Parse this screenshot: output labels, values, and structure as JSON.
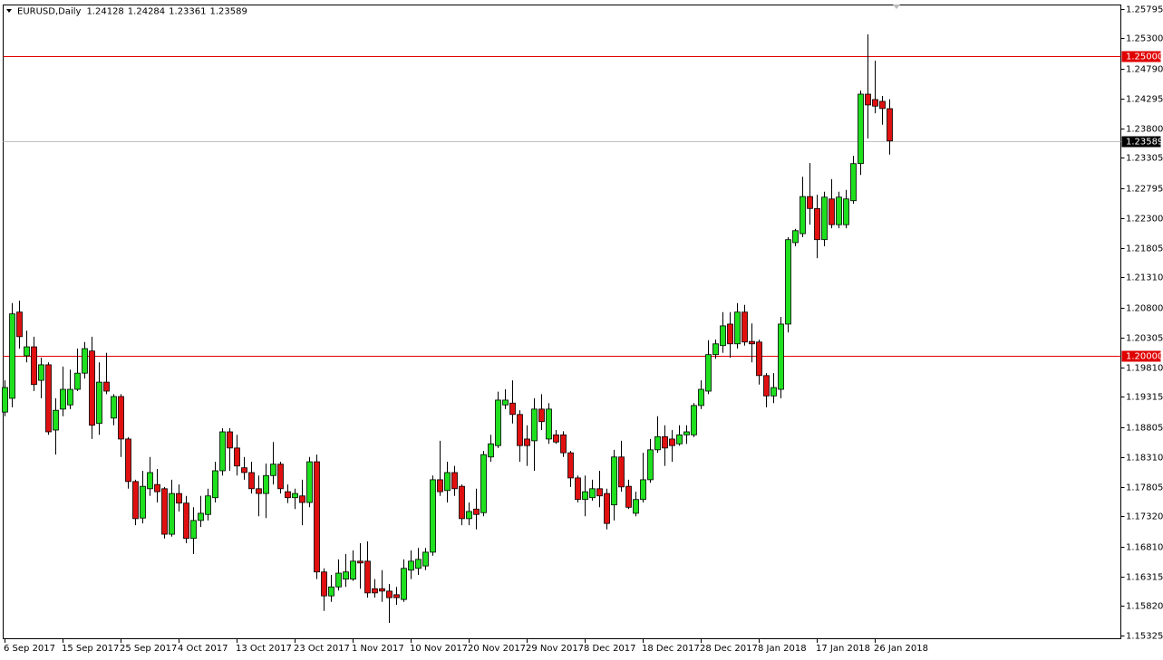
{
  "chart_data": {
    "type": "candlestick",
    "title": "EURUSD,Daily",
    "categories": [
      "6 Sep 2017",
      null,
      null,
      null,
      null,
      null,
      null,
      null,
      "15 Sep 2017",
      null,
      null,
      null,
      null,
      null,
      null,
      null,
      "25 Sep 2017",
      null,
      null,
      null,
      null,
      null,
      null,
      null,
      "4 Oct 2017",
      null,
      null,
      null,
      null,
      null,
      null,
      null,
      "13 Oct 2017",
      null,
      null,
      null,
      null,
      null,
      null,
      null,
      "23 Oct 2017",
      null,
      null,
      null,
      null,
      null,
      null,
      null,
      "1 Nov 2017",
      null,
      null,
      null,
      null,
      null,
      null,
      null,
      "10 Nov 2017",
      null,
      null,
      null,
      null,
      null,
      null,
      null,
      "20 Nov 2017",
      null,
      null,
      null,
      null,
      null,
      null,
      null,
      "29 Nov 2017",
      null,
      null,
      null,
      null,
      null,
      null,
      null,
      "8 Dec 2017",
      null,
      null,
      null,
      null,
      null,
      null,
      null,
      "18 Dec 2017",
      null,
      null,
      null,
      null,
      null,
      null,
      null,
      "28 Dec 2017",
      null,
      null,
      null,
      null,
      null,
      null,
      null,
      "8 Jan 2018",
      null,
      null,
      null,
      null,
      null,
      null,
      null,
      "17 Jan 2018",
      null,
      null,
      null,
      null,
      null,
      null,
      null,
      "26 Jan 2018",
      null,
      null
    ],
    "open": [
      1.1906,
      1.1929,
      1.2073,
      1.2,
      1.2015,
      1.1959,
      1.1985,
      1.1876,
      1.1911,
      1.1918,
      1.1944,
      1.1971,
      1.2008,
      1.1887,
      1.1956,
      1.1896,
      1.1932,
      1.1861,
      1.179,
      1.1729,
      1.1778,
      1.1785,
      1.1778,
      1.1702,
      1.177,
      1.1754,
      1.1695,
      1.1725,
      1.1735,
      1.1763,
      1.1808,
      1.1873,
      1.1846,
      1.1813,
      1.1805,
      1.1778,
      1.177,
      1.18,
      1.1819,
      1.1773,
      1.1763,
      1.1766,
      1.1755,
      1.1823,
      1.1639,
      1.1599,
      1.1614,
      1.1627,
      1.1627,
      1.1657,
      1.1657,
      1.1611,
      1.1611,
      1.1607,
      1.1601,
      1.1593,
      1.1642,
      1.1645,
      1.1649,
      1.1672,
      1.1793,
      1.1775,
      1.1805,
      1.1782,
      1.1728,
      1.1744,
      1.1738,
      1.1831,
      1.185,
      1.1918,
      1.1921,
      1.1902,
      1.1861,
      1.1858,
      1.1911,
      1.1861,
      1.1868,
      1.1868,
      1.1838,
      1.1796,
      1.176,
      1.1763,
      1.1778,
      1.177,
      1.1751,
      1.1831,
      1.1782,
      1.1737,
      1.176,
      1.1793,
      1.1843,
      1.1865,
      1.1861,
      1.1853,
      1.1868,
      1.1868,
      1.1917,
      1.1941,
      1.2002,
      1.2017,
      1.2053,
      1.202,
      1.2073,
      1.2024,
      1.2023,
      1.1967,
      1.1933,
      1.1944,
      1.2053,
      1.2189,
      1.2204,
      1.2266,
      1.2246,
      1.2194,
      1.2262,
      1.2219,
      1.2219,
      1.2259,
      1.2321,
      1.2437,
      1.2428,
      1.2425,
      1.24128
    ],
    "high": [
      1.1959,
      1.2088,
      1.2092,
      1.2042,
      1.2032,
      1.1997,
      1.1989,
      1.1929,
      1.1982,
      1.1977,
      1.2012,
      1.2023,
      1.2032,
      1.1989,
      1.2005,
      1.1936,
      1.1936,
      1.1864,
      1.1793,
      1.1808,
      1.1831,
      1.1811,
      1.1781,
      1.1793,
      1.1785,
      1.1766,
      1.1747,
      1.1766,
      1.1778,
      1.1823,
      1.1879,
      1.1879,
      1.1868,
      1.1831,
      1.1823,
      1.18,
      1.182,
      1.1856,
      1.1823,
      1.1785,
      1.1778,
      1.1793,
      1.1831,
      1.1835,
      1.1645,
      1.1634,
      1.166,
      1.1669,
      1.1675,
      1.1687,
      1.169,
      1.1627,
      1.1642,
      1.1619,
      1.1614,
      1.166,
      1.1675,
      1.1679,
      1.1679,
      1.18,
      1.1858,
      1.1823,
      1.1816,
      1.1785,
      1.1755,
      1.1778,
      1.1841,
      1.1868,
      1.194,
      1.1944,
      1.1959,
      1.1909,
      1.1884,
      1.1929,
      1.1936,
      1.1921,
      1.1876,
      1.1874,
      1.1841,
      1.18,
      1.18,
      1.1793,
      1.1808,
      1.1778,
      1.1843,
      1.1858,
      1.1793,
      1.1773,
      1.1838,
      1.1861,
      1.1899,
      1.1884,
      1.1876,
      1.1884,
      1.1884,
      1.1921,
      1.1959,
      1.2026,
      1.2027,
      1.2073,
      1.2073,
      1.2088,
      1.2085,
      1.2054,
      1.2027,
      1.1971,
      1.1971,
      1.2065,
      1.2198,
      1.2212,
      1.2299,
      1.2322,
      1.2269,
      1.2274,
      1.2295,
      1.2274,
      1.2277,
      1.2334,
      1.2443,
      1.2537,
      1.2493,
      1.2434,
      1.24284
    ],
    "low": [
      1.1899,
      1.1914,
      1.2012,
      1.1989,
      1.1941,
      1.1929,
      1.1868,
      1.1835,
      1.1899,
      1.1911,
      1.1941,
      1.1962,
      1.1861,
      1.1868,
      1.1936,
      1.1884,
      1.1831,
      1.1778,
      1.1717,
      1.172,
      1.1766,
      1.1755,
      1.1695,
      1.1698,
      1.174,
      1.1687,
      1.1669,
      1.1714,
      1.1725,
      1.1755,
      1.18,
      1.1808,
      1.18,
      1.1793,
      1.177,
      1.1732,
      1.1729,
      1.1785,
      1.177,
      1.1754,
      1.1744,
      1.1717,
      1.1747,
      1.1627,
      1.1574,
      1.1589,
      1.1608,
      1.1614,
      1.1624,
      1.1611,
      1.1596,
      1.1596,
      1.1589,
      1.1554,
      1.1584,
      1.1589,
      1.1627,
      1.1634,
      1.1642,
      1.1666,
      1.1766,
      1.1755,
      1.1766,
      1.1717,
      1.1717,
      1.171,
      1.1732,
      1.1823,
      1.1846,
      1.1911,
      1.1887,
      1.1823,
      1.1816,
      1.1808,
      1.1876,
      1.1853,
      1.1853,
      1.1831,
      1.1781,
      1.1755,
      1.1732,
      1.1758,
      1.1747,
      1.171,
      1.1725,
      1.1773,
      1.1744,
      1.1732,
      1.1755,
      1.1788,
      1.1838,
      1.1816,
      1.1823,
      1.185,
      1.1853,
      1.1864,
      1.1911,
      1.1936,
      1.1995,
      1.2005,
      1.1997,
      1.2012,
      1.2017,
      1.1989,
      1.1952,
      1.1914,
      1.1921,
      1.1929,
      1.2039,
      1.2183,
      1.2198,
      1.2219,
      1.2163,
      1.2183,
      1.2213,
      1.2213,
      1.2213,
      1.2254,
      1.2302,
      1.2363,
      1.2405,
      1.2386,
      1.23361
    ],
    "close": [
      1.1947,
      1.207,
      1.2032,
      1.2015,
      1.1952,
      1.1985,
      1.1873,
      1.1909,
      1.1944,
      1.1944,
      1.1971,
      1.2012,
      1.1884,
      1.1956,
      1.1941,
      1.1932,
      1.1861,
      1.179,
      1.1728,
      1.1782,
      1.1805,
      1.1773,
      1.1702,
      1.177,
      1.1754,
      1.1695,
      1.1725,
      1.1737,
      1.1766,
      1.1808,
      1.1873,
      1.1846,
      1.1816,
      1.1805,
      1.1778,
      1.177,
      1.18,
      1.1819,
      1.1778,
      1.1763,
      1.177,
      1.1755,
      1.1823,
      1.1639,
      1.1599,
      1.1614,
      1.1637,
      1.1639,
      1.1657,
      1.1654,
      1.1604,
      1.1604,
      1.1607,
      1.1596,
      1.1596,
      1.1645,
      1.1657,
      1.166,
      1.1672,
      1.1793,
      1.1773,
      1.1805,
      1.1778,
      1.1728,
      1.174,
      1.1735,
      1.1835,
      1.1853,
      1.1926,
      1.1926,
      1.1902,
      1.185,
      1.185,
      1.1911,
      1.189,
      1.1911,
      1.1856,
      1.1838,
      1.1796,
      1.176,
      1.1773,
      1.1778,
      1.1766,
      1.172,
      1.1831,
      1.1781,
      1.1747,
      1.176,
      1.1793,
      1.1843,
      1.1865,
      1.1846,
      1.185,
      1.1868,
      1.1873,
      1.1917,
      1.1944,
      1.2002,
      1.202,
      1.205,
      1.202,
      1.2073,
      1.2023,
      1.202,
      1.1967,
      1.1933,
      1.1947,
      1.2053,
      1.2194,
      1.2209,
      1.2266,
      1.2246,
      1.2194,
      1.2265,
      1.2219,
      1.2265,
      1.2262,
      1.2321,
      1.2437,
      1.2419,
      1.2417,
      1.2413,
      1.23589
    ],
    "up_color": "#1ee01e",
    "down_color": "#e01010",
    "levels": [
      {
        "value": 1.25,
        "label": "1.25000",
        "color": "#e00000"
      },
      {
        "value": 1.2,
        "label": "1.20000",
        "color": "#e00000"
      }
    ],
    "last_price_color": "#c0c0c0",
    "ylim": [
      1.15267,
      1.25867
    ],
    "yticks": [
      1.25795,
      {
        "value": 1.253,
        "label": "1.25300"
      },
      {
        "value": 1.2479,
        "label": "1.24790"
      },
      1.24295,
      {
        "value": 1.238,
        "label": "1.23800"
      },
      1.23305,
      1.22795,
      {
        "value": 1.223,
        "label": "1.22300"
      },
      1.21805,
      {
        "value": 1.2131,
        "label": "1.21310"
      },
      {
        "value": 1.208,
        "label": "1.20800"
      },
      1.20305,
      {
        "value": 1.1981,
        "label": "1.19810"
      },
      1.19315,
      1.18805,
      {
        "value": 1.1831,
        "label": "1.18310"
      },
      1.17805,
      {
        "value": 1.1732,
        "label": "1.17320"
      },
      {
        "value": 1.1681,
        "label": "1.16810"
      },
      1.16315,
      {
        "value": 1.1582,
        "label": "1.15820"
      },
      1.15325
    ]
  }
}
